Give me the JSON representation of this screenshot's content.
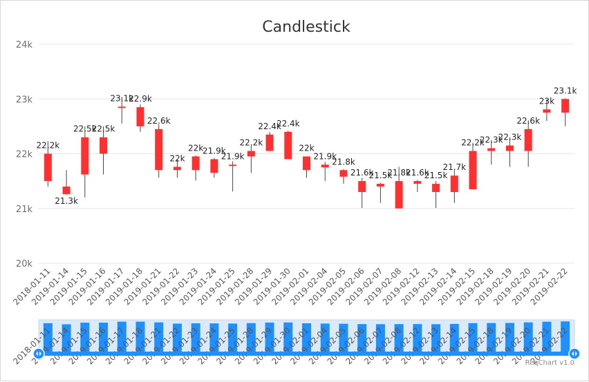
{
  "chart_data": {
    "type": "candlestick",
    "title": "Candlestick",
    "y_ticks": [
      "20k",
      "21k",
      "22k",
      "23k",
      "24k"
    ],
    "ylim": [
      20000,
      24000
    ],
    "grid": true,
    "up_color": "#ff3030",
    "wick_color": "#444444",
    "categories": [
      "2018-01-11",
      "2019-01-14",
      "2019-01-15",
      "2019-01-16",
      "2019-01-17",
      "2019-01-18",
      "2019-01-21",
      "2019-01-22",
      "2019-01-23",
      "2019-01-24",
      "2019-01-25",
      "2019-01-28",
      "2019-01-29",
      "2019-01-30",
      "2019-02-01",
      "2019-02-04",
      "2019-02-05",
      "2019-02-06",
      "2019-02-07",
      "2019-02-08",
      "2019-02-12",
      "2019-02-13",
      "2019-02-14",
      "2019-02-15",
      "2019-02-18",
      "2019-02-19",
      "2019-02-20",
      "2019-02-21",
      "2019-02-22"
    ],
    "ohlc": [
      {
        "open": 21500,
        "high": 22230,
        "low": 21400,
        "close": 22000,
        "label": "22.2k"
      },
      {
        "open": 21400,
        "high": 21700,
        "low": 21250,
        "close": 21260,
        "label": "21.3k"
      },
      {
        "open": 21620,
        "high": 22500,
        "low": 21200,
        "close": 22300,
        "label": "22.5k"
      },
      {
        "open": 22000,
        "high": 22500,
        "low": 21620,
        "close": 22300,
        "label": "22.5k"
      },
      {
        "open": 22840,
        "high": 23040,
        "low": 22550,
        "close": 22860,
        "label": "23.1k"
      },
      {
        "open": 22850,
        "high": 22900,
        "low": 22400,
        "close": 22500,
        "label": "22.9k"
      },
      {
        "open": 22450,
        "high": 22540,
        "low": 21560,
        "close": 21700,
        "label": "22.6k"
      },
      {
        "open": 21700,
        "high": 21900,
        "low": 21560,
        "close": 21760,
        "label": "22k"
      },
      {
        "open": 21950,
        "high": 21970,
        "low": 21510,
        "close": 21700,
        "label": "22k"
      },
      {
        "open": 21900,
        "high": 21920,
        "low": 21560,
        "close": 21650,
        "label": "21.9k"
      },
      {
        "open": 21780,
        "high": 21860,
        "low": 21310,
        "close": 21800,
        "label": "21.9k"
      },
      {
        "open": 21950,
        "high": 22150,
        "low": 21650,
        "close": 22050,
        "label": "22.2k"
      },
      {
        "open": 22050,
        "high": 22400,
        "low": 22050,
        "close": 22350,
        "label": "22.4k"
      },
      {
        "open": 22400,
        "high": 22420,
        "low": 21900,
        "close": 21900,
        "label": "22.4k"
      },
      {
        "open": 21950,
        "high": 21950,
        "low": 21560,
        "close": 21700,
        "label": "22k"
      },
      {
        "open": 21750,
        "high": 21850,
        "low": 21500,
        "close": 21800,
        "label": "21.9k"
      },
      {
        "open": 21700,
        "high": 21720,
        "low": 21450,
        "close": 21580,
        "label": "21.8k"
      },
      {
        "open": 21500,
        "high": 21560,
        "low": 21010,
        "close": 21300,
        "label": "21.6k"
      },
      {
        "open": 21400,
        "high": 21470,
        "low": 21100,
        "close": 21450,
        "label": "21.5k"
      },
      {
        "open": 21500,
        "high": 21760,
        "low": 21000,
        "close": 21000,
        "label": "21.8k"
      },
      {
        "open": 21450,
        "high": 21520,
        "low": 21300,
        "close": 21500,
        "label": "21.6k"
      },
      {
        "open": 21450,
        "high": 21500,
        "low": 21010,
        "close": 21300,
        "label": "21.5k"
      },
      {
        "open": 21300,
        "high": 21700,
        "low": 21100,
        "close": 21600,
        "label": "21.7k"
      },
      {
        "open": 21350,
        "high": 22200,
        "low": 21350,
        "close": 22050,
        "label": "22.2k"
      },
      {
        "open": 22050,
        "high": 22250,
        "low": 21800,
        "close": 22100,
        "label": "22.3k"
      },
      {
        "open": 22050,
        "high": 22300,
        "low": 21760,
        "close": 22150,
        "label": "22.3k"
      },
      {
        "open": 22050,
        "high": 22610,
        "low": 21760,
        "close": 22450,
        "label": "22.6k"
      },
      {
        "open": 22750,
        "high": 22990,
        "low": 22600,
        "close": 22810,
        "label": "23k"
      },
      {
        "open": 22750,
        "high": 23010,
        "low": 22500,
        "close": 23000,
        "label": "23.1k"
      }
    ]
  },
  "data_zoom": {
    "range": [
      0,
      100
    ]
  },
  "credit": "ReqChart v1.0"
}
